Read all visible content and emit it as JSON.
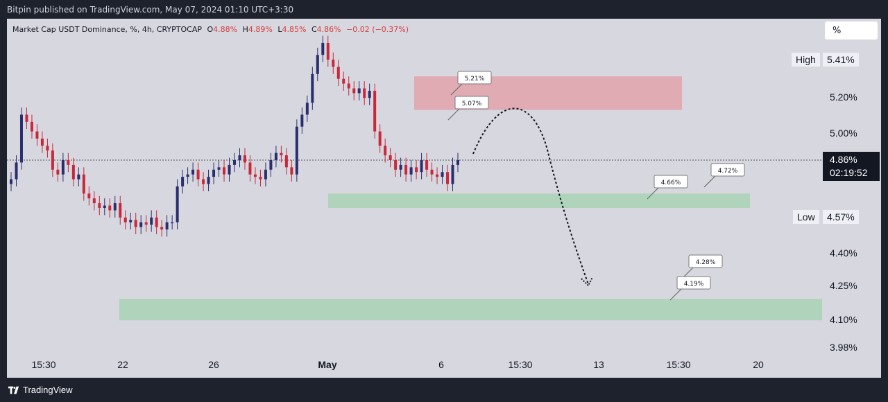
{
  "header": {
    "publisher": "Bitpin published on TradingView.com, May 07, 2024 01:10 UTC+3:30"
  },
  "footer": {
    "brand": "TradingView"
  },
  "legend": {
    "symbol": "Market Cap USDT Dominance, %, 4h, CRYPTOCAP",
    "open_key": "O",
    "open": "4.88%",
    "high_key": "H",
    "high": "4.89%",
    "low_key": "L",
    "low": "4.85%",
    "close_key": "C",
    "close": "4.86%",
    "change": "−0.02 (−0.37%)"
  },
  "unit_selector": "%",
  "price_scale": {
    "high_label": "High",
    "high_value": "5.41%",
    "low_label": "Low",
    "low_value": "4.57%",
    "last_price": "4.86%",
    "countdown": "02:19:52"
  },
  "colors": {
    "up": "#2a2e6e",
    "down": "#c8283a",
    "resistance_zone": "#e2a3ab",
    "support_zone": "#a9d3b5",
    "background": "#d6d7df",
    "frame": "#1e222d"
  },
  "chart_data": {
    "type": "candlestick",
    "title": "Market Cap USDT Dominance, %, 4h, CRYPTOCAP",
    "y_ticks": [
      "5.20%",
      "5.00%",
      "4.40%",
      "4.25%",
      "4.10%",
      "3.98%"
    ],
    "x_ticks": [
      {
        "label": "15:30",
        "bold": false
      },
      {
        "label": "22",
        "bold": false
      },
      {
        "label": "26",
        "bold": false
      },
      {
        "label": "May",
        "bold": true
      },
      {
        "label": "6",
        "bold": false
      },
      {
        "label": "15:30",
        "bold": false
      },
      {
        "label": "13",
        "bold": false
      },
      {
        "label": "15:30",
        "bold": false
      },
      {
        "label": "20",
        "bold": false
      }
    ],
    "last_value": 4.86,
    "zones": [
      {
        "name": "resistance",
        "from": 5.07,
        "to": 5.21
      },
      {
        "name": "support",
        "from": 4.66,
        "to": 4.72
      },
      {
        "name": "support",
        "from": 4.19,
        "to": 4.28
      }
    ],
    "callouts": [
      "5.21%",
      "5.07%",
      "4.66%",
      "4.72%",
      "4.28%",
      "4.19%"
    ],
    "projection": "dotted arc from last candle up toward 5.07–5.21% zone then down to 4.19–4.28% zone",
    "close_series": [
      4.78,
      4.85,
      5.05,
      5.02,
      4.98,
      4.95,
      4.92,
      4.9,
      4.82,
      4.8,
      4.86,
      4.84,
      4.78,
      4.8,
      4.72,
      4.7,
      4.68,
      4.66,
      4.67,
      4.65,
      4.68,
      4.62,
      4.6,
      4.61,
      4.58,
      4.6,
      4.59,
      4.62,
      4.58,
      4.57,
      4.6,
      4.6,
      4.75,
      4.79,
      4.8,
      4.82,
      4.78,
      4.76,
      4.79,
      4.82,
      4.83,
      4.8,
      4.84,
      4.86,
      4.88,
      4.85,
      4.8,
      4.79,
      4.78,
      4.82,
      4.86,
      4.89,
      4.88,
      4.83,
      4.8,
      5.0,
      5.05,
      5.1,
      5.22,
      5.3,
      5.35,
      5.28,
      5.25,
      5.2,
      5.18,
      5.16,
      5.14,
      5.16,
      5.12,
      5.15,
      4.98,
      4.92,
      4.88,
      4.86,
      4.82,
      4.84,
      4.8,
      4.83,
      4.81,
      4.86,
      4.82,
      4.8,
      4.79,
      4.81,
      4.76,
      4.84,
      4.86
    ]
  }
}
